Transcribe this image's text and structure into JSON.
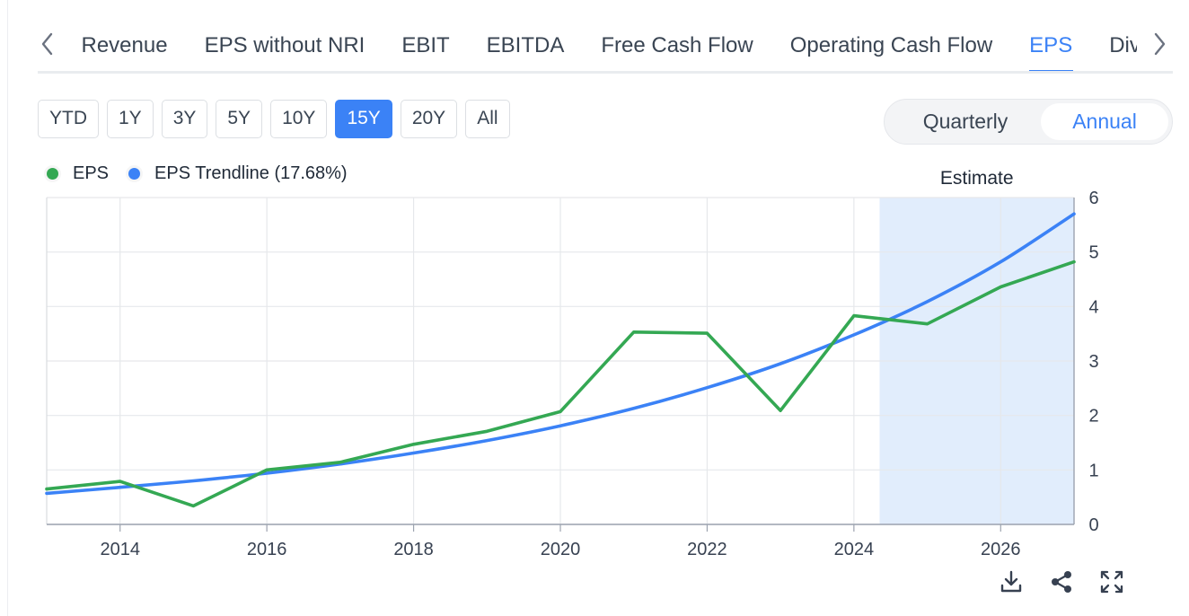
{
  "tabs": [
    {
      "label": "Revenue",
      "active": false
    },
    {
      "label": "EPS without NRI",
      "active": false
    },
    {
      "label": "EBIT",
      "active": false
    },
    {
      "label": "EBITDA",
      "active": false
    },
    {
      "label": "Free Cash Flow",
      "active": false
    },
    {
      "label": "Operating Cash Flow",
      "active": false
    },
    {
      "label": "EPS",
      "active": true
    },
    {
      "label": "Dividends",
      "active": false
    }
  ],
  "ranges": [
    {
      "label": "YTD",
      "active": false
    },
    {
      "label": "1Y",
      "active": false
    },
    {
      "label": "3Y",
      "active": false
    },
    {
      "label": "5Y",
      "active": false
    },
    {
      "label": "10Y",
      "active": false
    },
    {
      "label": "15Y",
      "active": true
    },
    {
      "label": "20Y",
      "active": false
    },
    {
      "label": "All",
      "active": false
    }
  ],
  "frequency": {
    "quarterly": "Quarterly",
    "annual": "Annual",
    "selected": "Annual"
  },
  "legend": [
    {
      "label": "EPS",
      "color": "#34a853"
    },
    {
      "label": "EPS Trendline (17.68%)",
      "color": "#3b82f6"
    }
  ],
  "colors": {
    "accent": "#3b82f6",
    "eps": "#34a853",
    "trend": "#3b82f6",
    "estimate_band": "#e1edfc",
    "grid": "#e6e8eb"
  },
  "chart_data": {
    "type": "line",
    "title": "",
    "xlabel": "",
    "ylabel": "",
    "xlim": [
      2013,
      2027
    ],
    "ylim": [
      0,
      6
    ],
    "x_ticks": [
      2014,
      2016,
      2018,
      2020,
      2022,
      2024,
      2026
    ],
    "y_ticks": [
      0,
      1,
      2,
      3,
      4,
      5,
      6
    ],
    "y_axis_side": "right",
    "grid": true,
    "legend_position": "top-left",
    "estimate": {
      "label": "Estimate",
      "from": 2024.35,
      "to": 2027
    },
    "series": [
      {
        "name": "EPS",
        "color": "#34a853",
        "x": [
          2013,
          2014,
          2015,
          2016,
          2017,
          2018,
          2019,
          2020,
          2021,
          2022,
          2023,
          2024,
          2025,
          2026,
          2027
        ],
        "y": [
          0.65,
          0.79,
          0.34,
          1.0,
          1.14,
          1.47,
          1.71,
          2.07,
          3.53,
          3.51,
          2.09,
          3.83,
          3.68,
          4.36,
          4.82
        ]
      },
      {
        "name": "EPS Trendline (17.68%)",
        "color": "#3b82f6",
        "x": [
          2013,
          2014,
          2015,
          2016,
          2017,
          2018,
          2019,
          2020,
          2021,
          2022,
          2023,
          2024,
          2025,
          2026,
          2027
        ],
        "y": [
          0.57,
          0.68,
          0.8,
          0.94,
          1.11,
          1.31,
          1.54,
          1.81,
          2.13,
          2.51,
          2.95,
          3.48,
          4.09,
          4.82,
          5.7
        ]
      }
    ]
  },
  "tools": {
    "download": "download-icon",
    "share": "share-icon",
    "fullscreen": "fullscreen-icon"
  }
}
